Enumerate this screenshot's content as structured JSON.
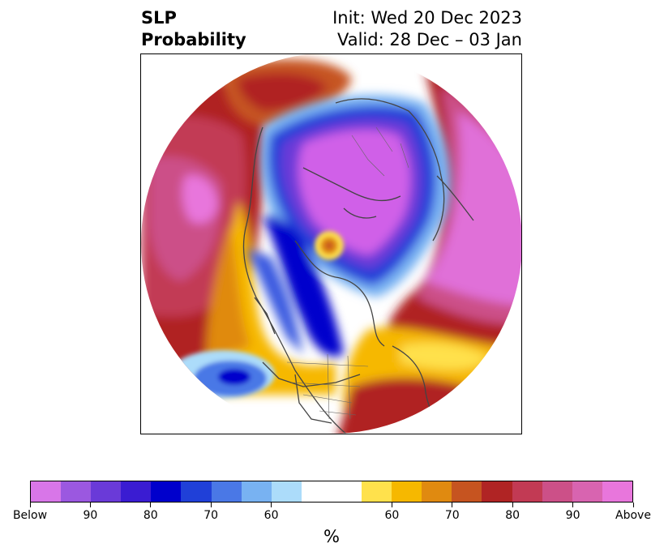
{
  "title": {
    "left_line1": "SLP",
    "left_line2": "Probability",
    "right_line1": "Init: Wed 20 Dec 2023",
    "right_line2": "Valid: 28 Dec – 03 Jan"
  },
  "colorbar": {
    "unit": "%",
    "colors": [
      "#d876e8",
      "#9b58e0",
      "#6a3ad8",
      "#3a1cd2",
      "#0000cc",
      "#2040d8",
      "#4a78e6",
      "#78b2f2",
      "#acdcfa",
      "#ffffff",
      "#ffe14c",
      "#f6b800",
      "#e08a10",
      "#c65420",
      "#b02424",
      "#c23a54",
      "#cc5088",
      "#d864b0",
      "#e876dc"
    ],
    "labels": [
      "Below",
      "90",
      "80",
      "70",
      "60",
      "60",
      "70",
      "80",
      "90",
      "Above"
    ]
  },
  "map": {
    "projection": "north-polar-stereographic",
    "below_colors": {
      "strong": "#d060e8",
      "deep": "#0000cc",
      "mid": "#3a5ae0",
      "light": "#8ec8f6"
    },
    "above_colors": {
      "yellow": "#ffe14c",
      "orange": "#e08a10",
      "red": "#b02424",
      "magenta": "#c94a7a",
      "pink": "#e070d8"
    }
  }
}
